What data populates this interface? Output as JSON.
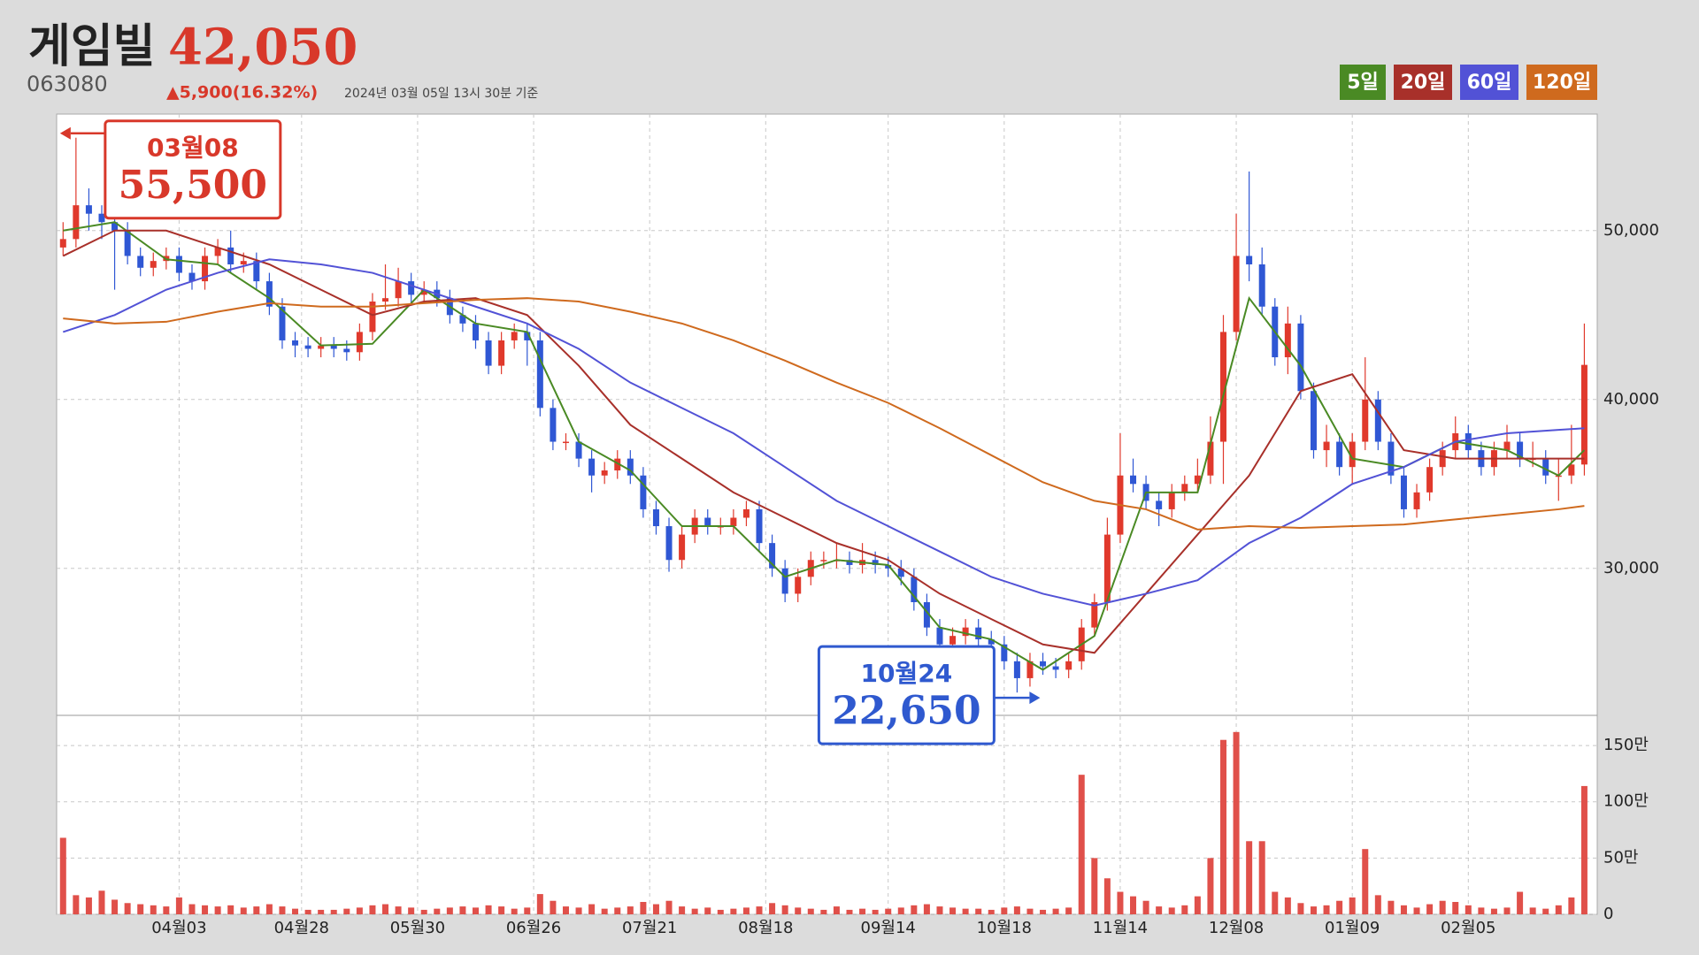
{
  "header": {
    "name": "게임빌",
    "price": "42,050",
    "code": "063080",
    "change": "▲5,900(16.32%)",
    "timestamp": "2024년 03월 05일 13시 30분 기준"
  },
  "chart_data": {
    "type": "candlestick",
    "xlim": [
      -1,
      238
    ],
    "xticks": [
      {
        "value": 18,
        "label": "04월03"
      },
      {
        "value": 37,
        "label": "04월28"
      },
      {
        "value": 55,
        "label": "05월30"
      },
      {
        "value": 73,
        "label": "06월26"
      },
      {
        "value": 91,
        "label": "07월21"
      },
      {
        "value": 109,
        "label": "08월18"
      },
      {
        "value": 128,
        "label": "09월14"
      },
      {
        "value": 146,
        "label": "10월18"
      },
      {
        "value": 164,
        "label": "11월14"
      },
      {
        "value": 182,
        "label": "12월08"
      },
      {
        "value": 200,
        "label": "01월09"
      },
      {
        "value": 218,
        "label": "02월05"
      }
    ],
    "ylim": [
      21350,
      56900
    ],
    "yticks": [
      {
        "value": 30000,
        "label": "30,000"
      },
      {
        "value": 40000,
        "label": "40,000"
      },
      {
        "value": 50000,
        "label": "50,000"
      }
    ],
    "y2lim": [
      0,
      1760000
    ],
    "y2ticks": [
      0,
      {
        "value": 500000,
        "label": "50만"
      },
      {
        "value": 1000000,
        "label": "100만"
      },
      {
        "value": 1500000,
        "label": "150만"
      }
    ],
    "grid": true,
    "candles": {
      "up_color": "#e0392c",
      "down_color": "#2f57d4",
      "x": [
        0,
        2,
        4,
        6,
        8,
        10,
        12,
        14,
        16,
        18,
        20,
        22,
        24,
        26,
        28,
        30,
        32,
        34,
        36,
        38,
        40,
        42,
        44,
        46,
        48,
        50,
        52,
        54,
        56,
        58,
        60,
        62,
        64,
        66,
        68,
        70,
        72,
        74,
        76,
        78,
        80,
        82,
        84,
        86,
        88,
        90,
        92,
        94,
        96,
        98,
        100,
        102,
        104,
        106,
        108,
        110,
        112,
        114,
        116,
        118,
        120,
        122,
        124,
        126,
        128,
        130,
        132,
        134,
        136,
        138,
        140,
        142,
        144,
        146,
        148,
        150,
        152,
        154,
        156,
        158,
        160,
        162,
        164,
        166,
        168,
        170,
        172,
        174,
        176,
        178,
        180,
        182,
        184,
        186,
        188,
        190,
        192,
        194,
        196,
        198,
        200,
        202,
        204,
        206,
        208,
        210,
        212,
        214,
        216,
        218,
        220,
        222,
        224,
        226,
        228,
        230,
        232,
        234,
        236
      ],
      "open": [
        49000,
        49500,
        51500,
        51000,
        50500,
        50000,
        48500,
        47800,
        48200,
        48500,
        47500,
        47000,
        48500,
        49000,
        48000,
        48200,
        47000,
        45500,
        43500,
        43200,
        43000,
        43200,
        43000,
        42800,
        44000,
        45800,
        46000,
        47000,
        46200,
        46500,
        46000,
        45000,
        44500,
        43500,
        42000,
        43500,
        44000,
        43500,
        39500,
        37500,
        37500,
        36500,
        35500,
        35800,
        36500,
        35500,
        33500,
        32500,
        30500,
        32000,
        33000,
        32500,
        32500,
        33000,
        33500,
        31500,
        30000,
        28500,
        29500,
        30500,
        30500,
        30500,
        30200,
        30500,
        30200,
        30000,
        29500,
        28000,
        26500,
        25500,
        26000,
        26500,
        25800,
        25500,
        24500,
        23500,
        24500,
        24200,
        24000,
        24500,
        26500,
        28000,
        32000,
        35500,
        35000,
        34000,
        33500,
        34500,
        35000,
        35500,
        37500,
        44000,
        48500,
        48000,
        45500,
        42500,
        44500,
        40500,
        37000,
        37500,
        36000,
        37500,
        40000,
        37500,
        35500,
        33500,
        34500,
        36000,
        37000,
        38000,
        37000,
        36000,
        37000,
        37500,
        36500,
        36500,
        35500,
        35500,
        36150
      ],
      "high": [
        50500,
        55500,
        52500,
        51500,
        51000,
        50500,
        49000,
        48700,
        49000,
        49000,
        48000,
        49000,
        49500,
        50000,
        48700,
        48700,
        47500,
        46000,
        44000,
        43700,
        43700,
        43700,
        43500,
        44500,
        46300,
        48000,
        47800,
        47500,
        47000,
        47000,
        46500,
        45500,
        45000,
        44000,
        44000,
        44500,
        44500,
        44000,
        40000,
        38000,
        38000,
        37000,
        36300,
        37000,
        37000,
        36000,
        34000,
        33000,
        32500,
        33500,
        33500,
        33000,
        33500,
        34000,
        34000,
        32000,
        30500,
        30000,
        31000,
        31000,
        31500,
        31000,
        31500,
        31000,
        30700,
        30500,
        30000,
        28500,
        27000,
        26500,
        27000,
        27000,
        26300,
        26000,
        25000,
        25000,
        25000,
        24700,
        25000,
        27000,
        28500,
        33000,
        38000,
        36500,
        35500,
        34500,
        35000,
        35500,
        36500,
        39000,
        45000,
        51000,
        53500,
        49000,
        46000,
        45500,
        45000,
        41000,
        38500,
        38000,
        38000,
        42500,
        40500,
        38000,
        36000,
        35000,
        36500,
        37500,
        39000,
        38500,
        37500,
        37500,
        38500,
        38000,
        37500,
        37000,
        36500,
        38500,
        44500
      ],
      "low": [
        48500,
        49000,
        50000,
        49500,
        46500,
        48000,
        47300,
        47300,
        47700,
        47000,
        46500,
        46500,
        48000,
        47500,
        47500,
        46500,
        45000,
        43000,
        42500,
        42500,
        42500,
        42500,
        42300,
        42300,
        43500,
        45300,
        45500,
        45700,
        45700,
        45500,
        44500,
        44000,
        43000,
        41500,
        41500,
        43000,
        42000,
        39000,
        37000,
        37000,
        36000,
        34500,
        35000,
        35300,
        35000,
        33000,
        32000,
        29800,
        30000,
        31500,
        32000,
        32000,
        32000,
        32500,
        31000,
        29500,
        28000,
        28000,
        29000,
        30000,
        30000,
        29700,
        29700,
        29700,
        29500,
        29000,
        27500,
        26000,
        25000,
        25000,
        25500,
        25300,
        25000,
        24000,
        22650,
        23000,
        23700,
        23500,
        23500,
        24000,
        26000,
        27500,
        31500,
        34500,
        33500,
        32500,
        33000,
        34000,
        34500,
        35000,
        35000,
        43500,
        47000,
        45000,
        42000,
        41500,
        40000,
        36500,
        36000,
        35500,
        35000,
        37000,
        37000,
        35000,
        33000,
        33000,
        34000,
        35500,
        36500,
        36500,
        35500,
        35500,
        36500,
        36000,
        36000,
        35000,
        34000,
        35000,
        35500
      ],
      "close": [
        49500,
        51500,
        51000,
        50500,
        50000,
        48500,
        47800,
        48200,
        48500,
        47500,
        47000,
        48500,
        49000,
        48000,
        48200,
        47000,
        45500,
        43500,
        43200,
        43000,
        43200,
        43000,
        42800,
        44000,
        45800,
        46000,
        47000,
        46200,
        46500,
        46000,
        45000,
        44500,
        43500,
        42000,
        43500,
        44000,
        43500,
        39500,
        37500,
        37500,
        36500,
        35500,
        35800,
        36500,
        35500,
        33500,
        32500,
        30500,
        32000,
        33000,
        32500,
        32500,
        33000,
        33500,
        31500,
        30000,
        28500,
        29500,
        30500,
        30500,
        30500,
        30200,
        30500,
        30200,
        30000,
        29500,
        28000,
        26500,
        25500,
        26000,
        26500,
        25800,
        25500,
        24500,
        23500,
        24500,
        24200,
        24000,
        24500,
        26500,
        28000,
        32000,
        35500,
        35000,
        34000,
        33500,
        34500,
        35000,
        35500,
        37500,
        44000,
        48500,
        48000,
        45500,
        42500,
        44500,
        40500,
        37000,
        37500,
        36000,
        37500,
        40000,
        37500,
        35500,
        33500,
        34500,
        36000,
        37000,
        38000,
        37000,
        36000,
        37000,
        37500,
        36500,
        36500,
        35500,
        35500,
        36150,
        42050
      ]
    },
    "volume": {
      "color": "#e0504a",
      "axis": "y2",
      "values": [
        680000,
        170000,
        150000,
        210000,
        130000,
        100000,
        90000,
        80000,
        70000,
        150000,
        90000,
        80000,
        70000,
        80000,
        60000,
        70000,
        90000,
        70000,
        50000,
        40000,
        40000,
        40000,
        50000,
        60000,
        80000,
        90000,
        70000,
        60000,
        40000,
        50000,
        60000,
        70000,
        60000,
        80000,
        70000,
        50000,
        60000,
        180000,
        120000,
        70000,
        60000,
        90000,
        50000,
        60000,
        70000,
        110000,
        90000,
        120000,
        70000,
        50000,
        60000,
        40000,
        50000,
        60000,
        70000,
        100000,
        80000,
        60000,
        50000,
        40000,
        70000,
        40000,
        50000,
        40000,
        50000,
        60000,
        80000,
        90000,
        70000,
        60000,
        50000,
        50000,
        40000,
        60000,
        70000,
        50000,
        40000,
        50000,
        60000,
        1240000,
        500000,
        320000,
        200000,
        160000,
        120000,
        70000,
        60000,
        80000,
        160000,
        500000,
        1550000,
        1620000,
        650000,
        650000,
        200000,
        150000,
        100000,
        70000,
        80000,
        120000,
        150000,
        580000,
        170000,
        120000,
        80000,
        60000,
        90000,
        120000,
        110000,
        80000,
        60000,
        50000,
        60000,
        200000,
        60000,
        50000,
        80000,
        150000,
        1140000
      ]
    },
    "ma_x": [
      0,
      8,
      16,
      24,
      32,
      40,
      48,
      56,
      64,
      72,
      80,
      88,
      96,
      104,
      112,
      120,
      128,
      136,
      144,
      152,
      160,
      168,
      176,
      184,
      192,
      200,
      208,
      216,
      224,
      232,
      236
    ],
    "series": [
      {
        "name": "5일",
        "color": "#4a8a24",
        "values": [
          50000,
          50500,
          48300,
          48000,
          46000,
          43200,
          43300,
          46500,
          44500,
          44000,
          37500,
          35800,
          32500,
          32500,
          29500,
          30500,
          30200,
          26500,
          25800,
          24000,
          26000,
          34500,
          34500,
          46000,
          42000,
          36500,
          36000,
          37500,
          37000,
          35500,
          37000
        ]
      },
      {
        "name": "20일",
        "color": "#a8302a",
        "values": [
          48500,
          50000,
          50000,
          49000,
          48000,
          46500,
          45000,
          45800,
          46000,
          45000,
          42000,
          38500,
          36500,
          34500,
          33000,
          31500,
          30500,
          28500,
          27000,
          25500,
          25000,
          28500,
          32000,
          35500,
          40500,
          41500,
          37000,
          36500,
          36500,
          36500,
          36500
        ]
      },
      {
        "name": "60일",
        "color": "#5252d6",
        "values": [
          44000,
          45000,
          46500,
          47500,
          48300,
          48000,
          47500,
          46500,
          45500,
          44500,
          43000,
          41000,
          39500,
          38000,
          36000,
          34000,
          32500,
          31000,
          29500,
          28500,
          27800,
          28500,
          29300,
          31500,
          33000,
          35000,
          36000,
          37500,
          38000,
          38200,
          38300
        ]
      },
      {
        "name": "120일",
        "color": "#cf6a1e",
        "values": [
          44800,
          44500,
          44600,
          45200,
          45700,
          45500,
          45500,
          45700,
          45900,
          46000,
          45800,
          45200,
          44500,
          43500,
          42300,
          41000,
          39800,
          38300,
          36700,
          35100,
          34000,
          33500,
          32300,
          32500,
          32400,
          32500,
          32600,
          32900,
          33200,
          33500,
          33700
        ]
      }
    ],
    "annotations": [
      {
        "date": "03월08",
        "x": 2,
        "value": {
          "value": 55500,
          "label": "55,500"
        },
        "color": "#d8382a"
      },
      {
        "date": "10월24",
        "x": 148,
        "value": {
          "value": 22650,
          "label": "22,650"
        },
        "color": "#2f59cf"
      }
    ]
  }
}
